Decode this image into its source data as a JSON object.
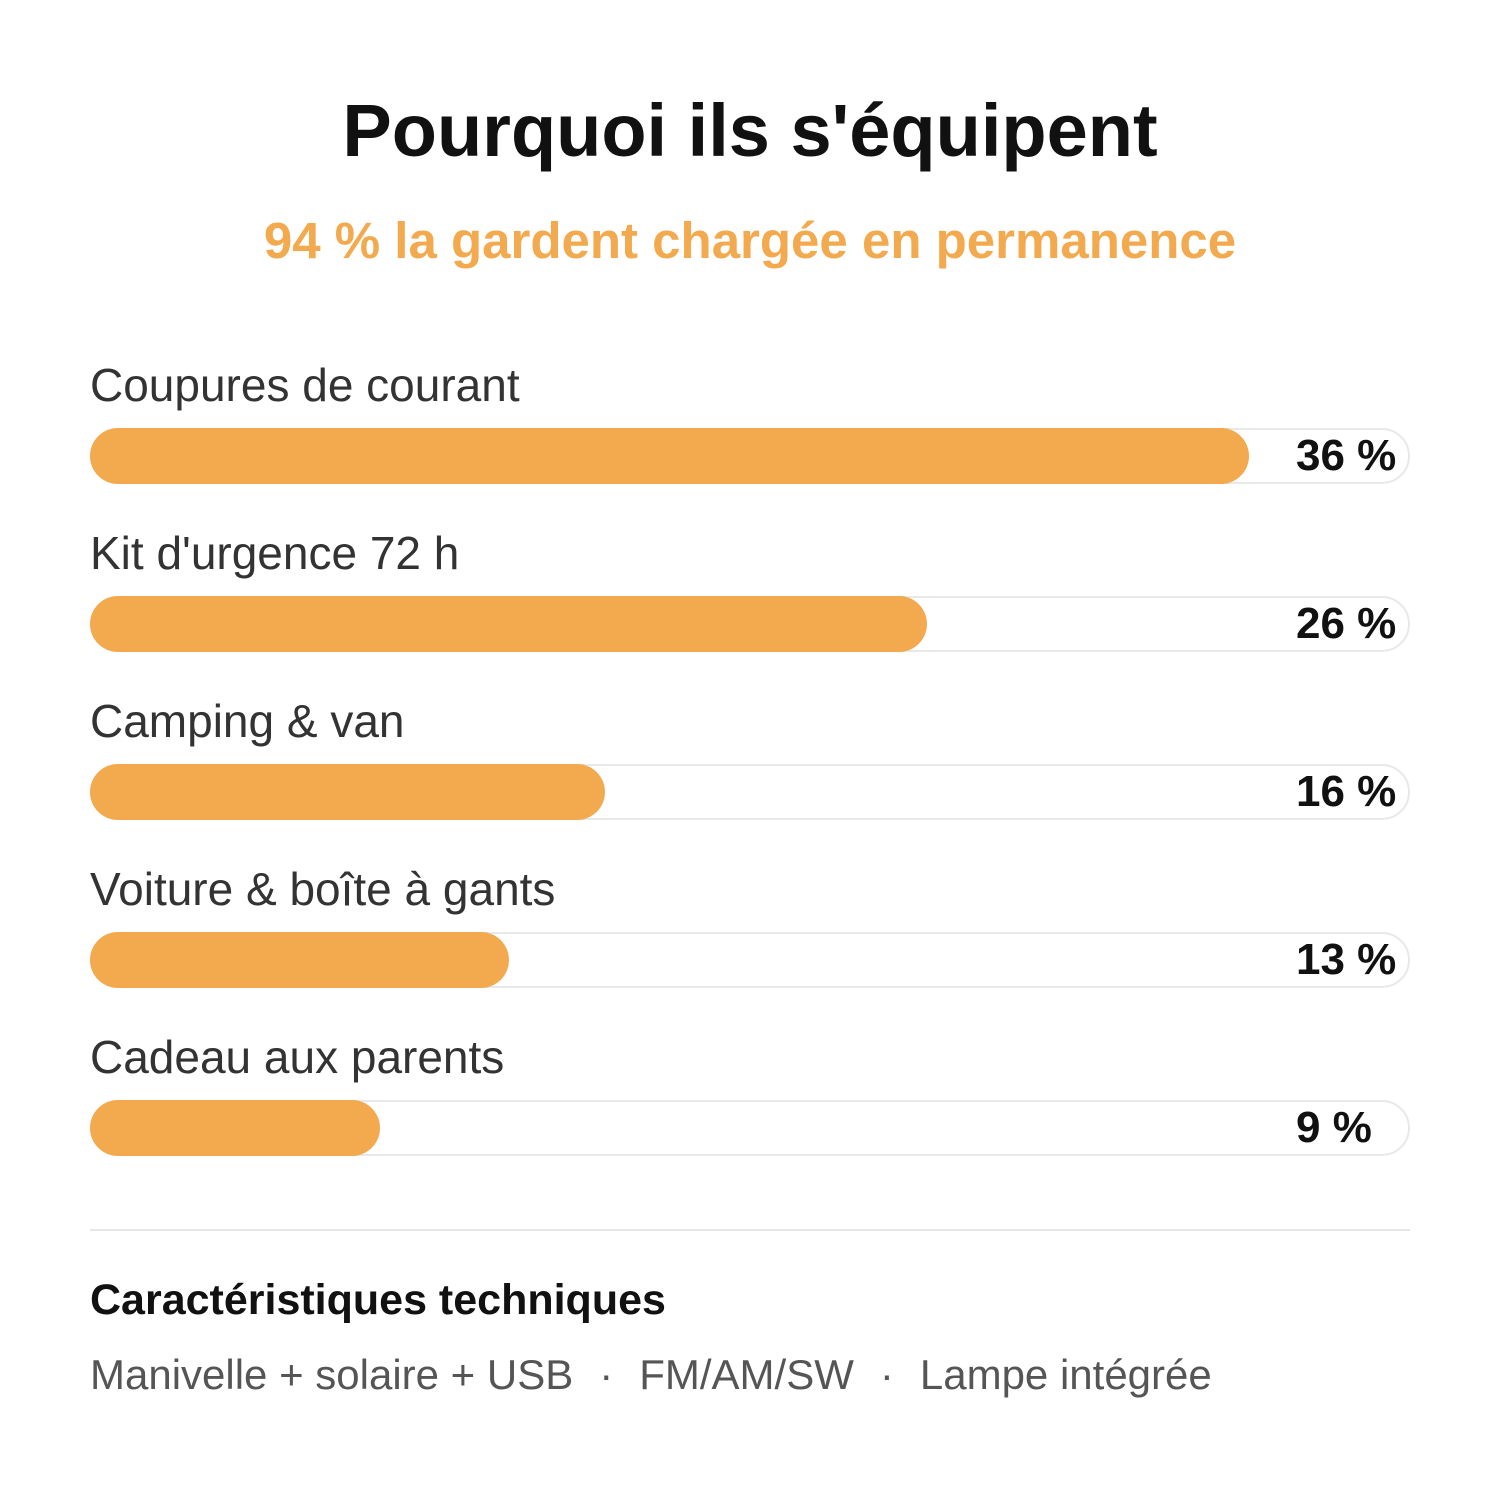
{
  "colors": {
    "accent": "#F3A94D",
    "track_border": "#E8E8E8",
    "divider": "#E6E6E6",
    "title_text": "#111111",
    "label_text": "#333333",
    "spec_text": "#555555"
  },
  "chart_data": {
    "type": "bar",
    "orientation": "horizontal",
    "title": "Pourquoi ils s'équipent",
    "subtitle": "94 % la gardent chargée en permanence",
    "categories": [
      "Coupures de courant",
      "Kit d'urgence 72 h",
      "Camping & van",
      "Voiture & boîte à gants",
      "Cadeau aux parents"
    ],
    "values": [
      36,
      26,
      16,
      13,
      9
    ],
    "value_labels": [
      "36 %",
      "26 %",
      "16 %",
      "13 %",
      "9 %"
    ],
    "xlim": [
      0,
      41
    ],
    "grid": false,
    "legend": "none"
  },
  "specs": {
    "heading": "Caractéristiques techniques",
    "items": [
      "Manivelle + solaire + USB",
      "FM/AM/SW",
      "Lampe intégrée"
    ],
    "separator": "·"
  }
}
